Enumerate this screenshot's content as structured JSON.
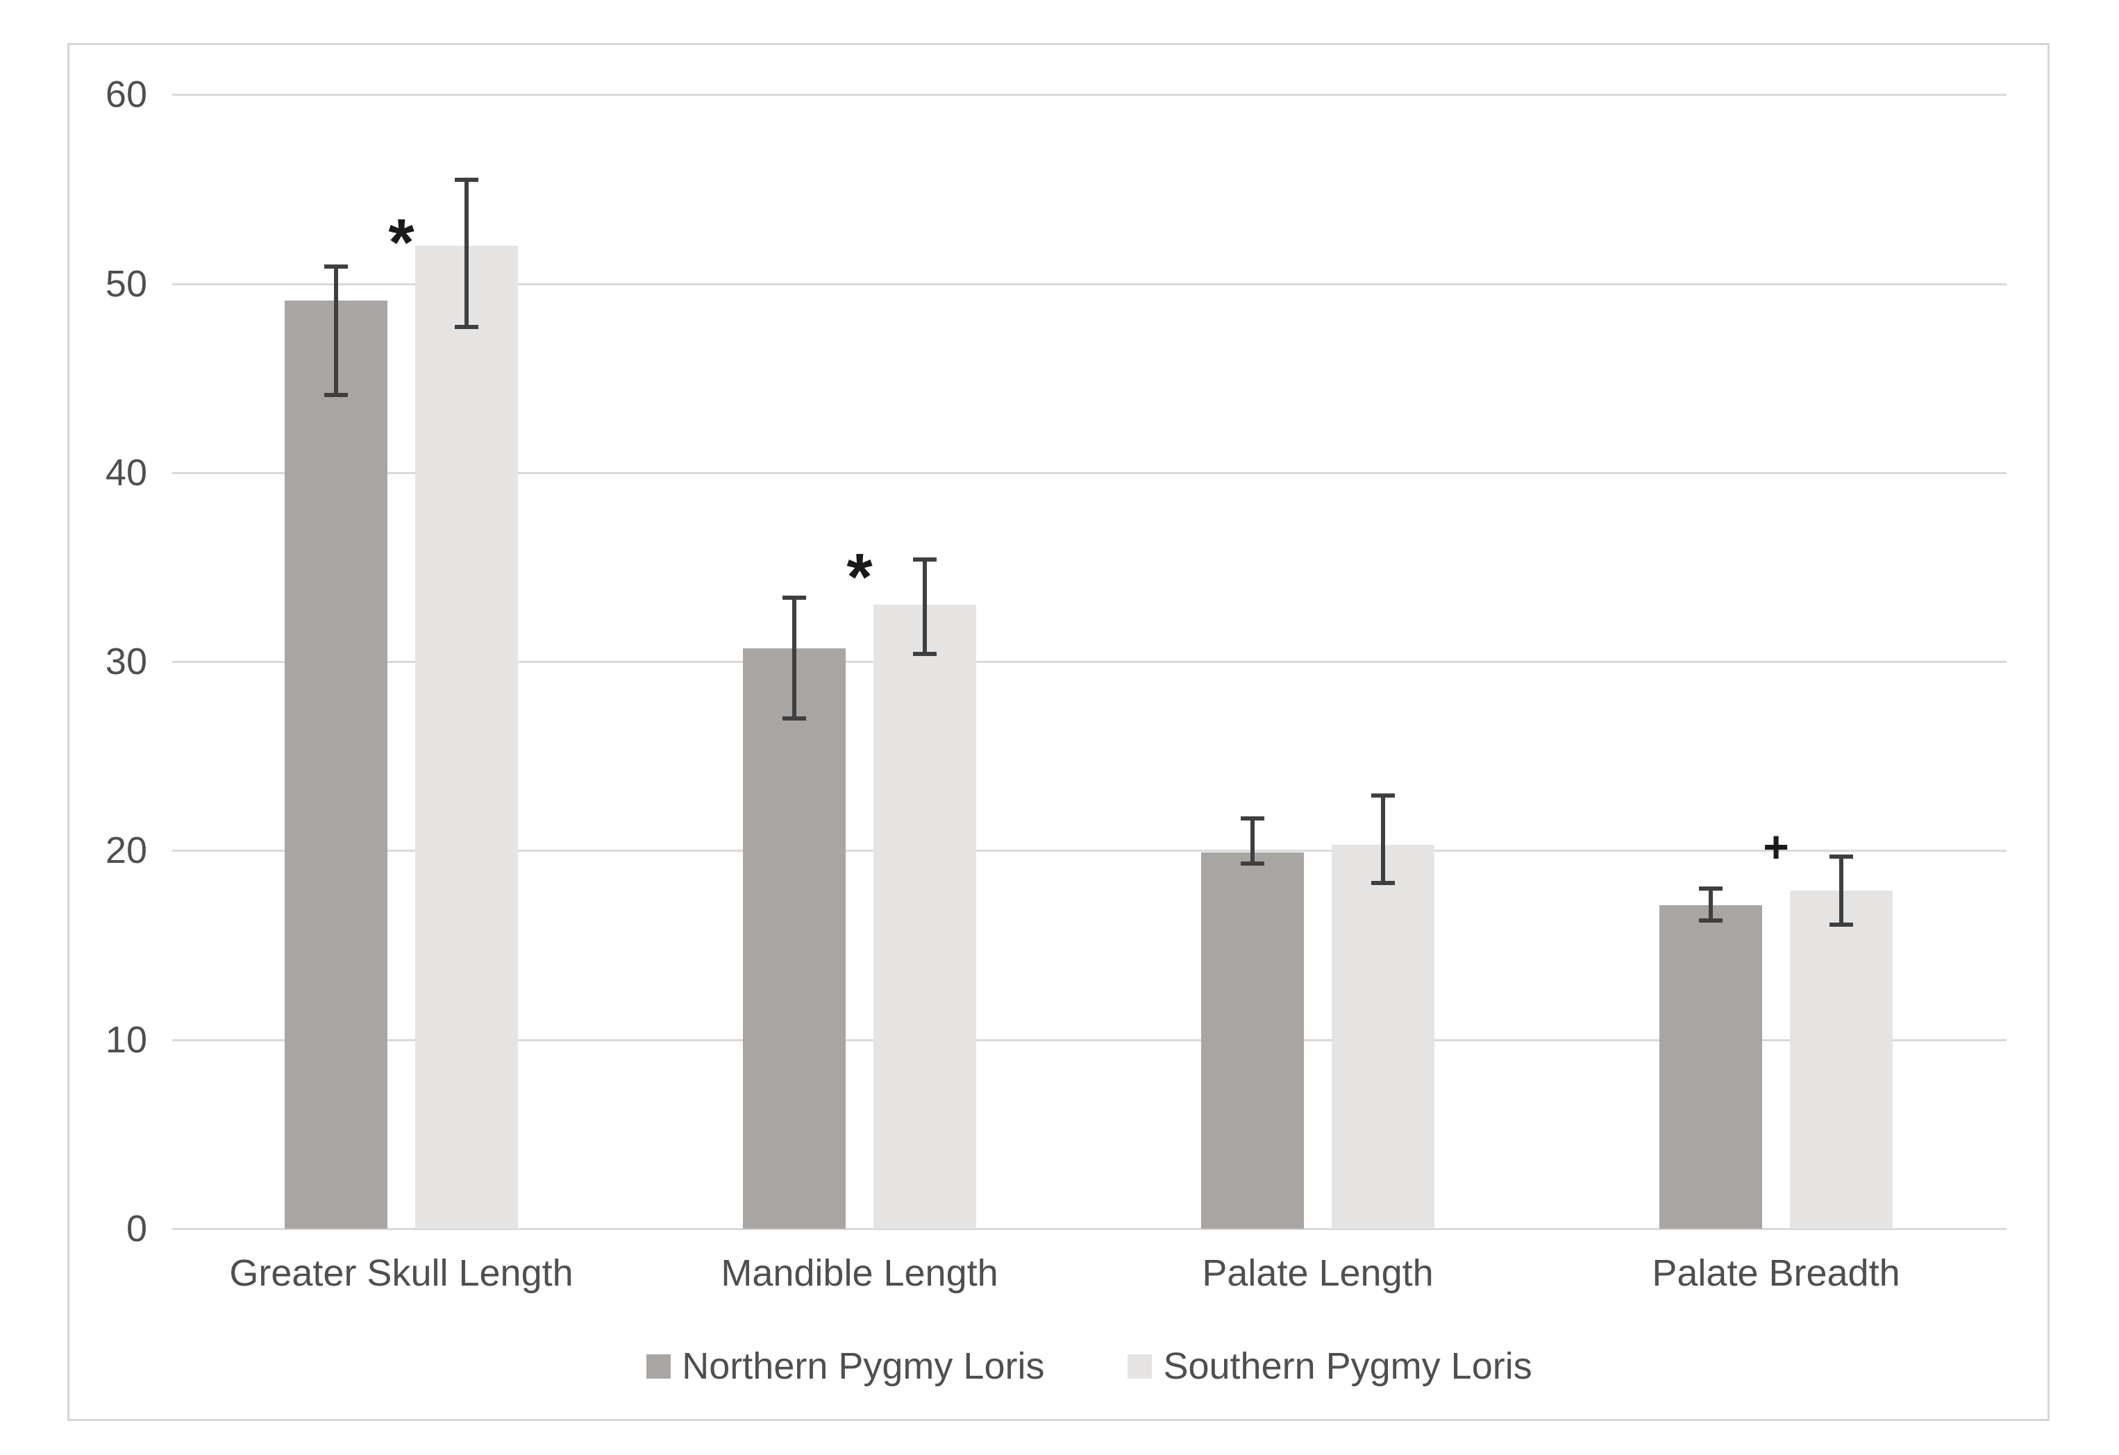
{
  "chart_data": {
    "type": "bar",
    "title": "",
    "xlabel": "",
    "ylabel": "",
    "categories": [
      "Greater Skull Length",
      "Mandible Length",
      "Palate Length",
      "Palate Breadth"
    ],
    "series": [
      {
        "name": "Northern Pygmy Loris",
        "values": [
          49.1,
          30.7,
          19.9,
          17.1
        ],
        "error_low": [
          44.1,
          27.0,
          19.3,
          16.3
        ],
        "error_high": [
          50.9,
          33.4,
          21.7,
          18.0
        ]
      },
      {
        "name": "Southern Pygmy Loris",
        "values": [
          52.0,
          33.0,
          20.3,
          17.9
        ],
        "error_low": [
          47.7,
          30.4,
          18.3,
          16.1
        ],
        "error_high": [
          55.5,
          35.4,
          22.9,
          19.7
        ]
      }
    ],
    "annotations": [
      {
        "category_index": 0,
        "symbol": "*",
        "value": 53.4,
        "meaning": "significance-marker"
      },
      {
        "category_index": 1,
        "symbol": "*",
        "value": 35.7,
        "meaning": "significance-marker"
      },
      {
        "category_index": 3,
        "symbol": "+",
        "value": 20.2,
        "meaning": "significance-marker"
      }
    ],
    "y_axis": {
      "min": 0,
      "max": 60,
      "step": 10,
      "tick_labels": [
        "0",
        "10",
        "20",
        "30",
        "40",
        "50",
        "60"
      ]
    },
    "ylim": [
      0,
      60
    ],
    "grid": true,
    "legend": {
      "position": "bottom",
      "entries": [
        "Northern Pygmy Loris",
        "Southern Pygmy Loris"
      ]
    },
    "colors": {
      "northern_bar": "#a9a5a2",
      "southern_bar": "#e5e4e2",
      "error_bar": "#3f3f3f",
      "gridline": "#d9d9d9",
      "text": "#4f4f4f",
      "annotation": "#1a1a1a",
      "figure_border": "#d8d6d4",
      "background": "#ffffff"
    }
  }
}
